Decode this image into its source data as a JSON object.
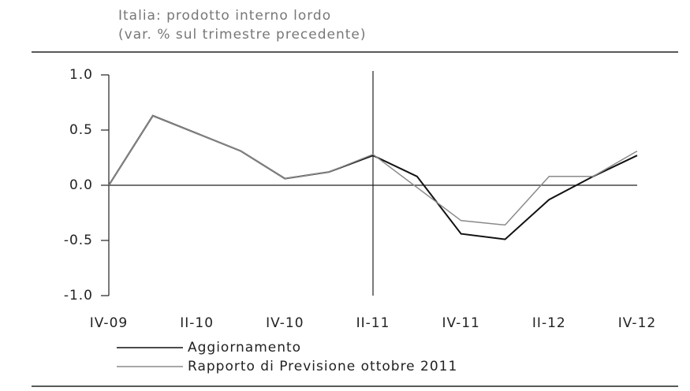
{
  "chart_data": {
    "type": "line",
    "title": "Italia: prodotto interno lordo",
    "subtitle": "(var. % sul trimestre precedente)",
    "categories": [
      "IV-09",
      null,
      "II-10",
      null,
      "IV-10",
      null,
      "II-11",
      null,
      "IV-11",
      null,
      "II-12",
      null,
      "IV-12"
    ],
    "series": [
      {
        "name": "Aggiornamento",
        "color": "#111111",
        "values": [
          0,
          0.63,
          0.47,
          0.31,
          0.06,
          0.12,
          0.27,
          0.08,
          -0.44,
          -0.49,
          -0.13,
          0.08,
          0.27
        ]
      },
      {
        "name": "Rapporto di Previsione ottobre 2011",
        "color": "#8a8a8a",
        "values": [
          0,
          0.63,
          0.47,
          0.31,
          0.06,
          0.12,
          0.28,
          -0.02,
          -0.32,
          -0.36,
          0.08,
          0.08,
          0.31
        ]
      }
    ],
    "ylim": [
      -1,
      1
    ],
    "yticks": [
      {
        "value": -1,
        "label": "-1.0"
      },
      {
        "value": -0.5,
        "label": "-0.5"
      },
      {
        "value": 0,
        "label": "0.0"
      },
      {
        "value": 0.5,
        "label": "0.5"
      },
      {
        "value": 1,
        "label": "1.0"
      }
    ]
  }
}
